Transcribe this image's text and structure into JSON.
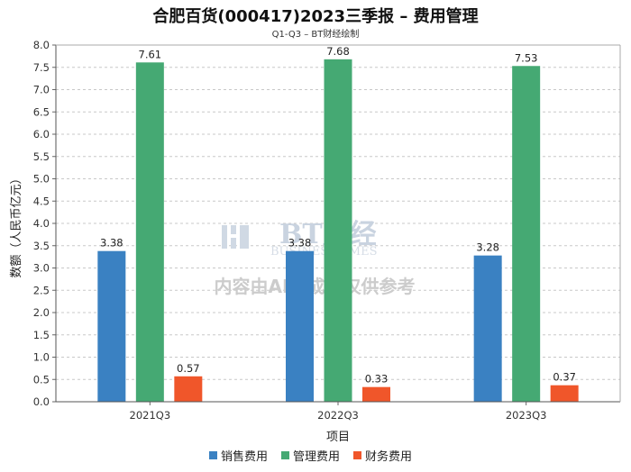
{
  "title": "合肥百货(000417)2023三季报 – 费用管理",
  "subtitle": "Q1-Q3 – BT财经绘制",
  "watermark": {
    "brand": "BT财经",
    "brand_en": "BUSINESSTIMES",
    "disclaimer": "内容由AI生成，仅供参考"
  },
  "chart_data": {
    "type": "bar",
    "categories": [
      "2021Q3",
      "2022Q3",
      "2023Q3"
    ],
    "series": [
      {
        "name": "销售费用",
        "values": [
          3.38,
          3.38,
          3.28
        ],
        "color": "#3a81c2"
      },
      {
        "name": "管理费用",
        "values": [
          7.61,
          7.68,
          7.53
        ],
        "color": "#45a973"
      },
      {
        "name": "财务费用",
        "values": [
          0.57,
          0.33,
          0.37
        ],
        "color": "#f0562a"
      }
    ],
    "xlabel": "项目",
    "ylabel": "数额（人民币亿元）",
    "ylim": [
      0,
      8.0
    ],
    "yticks": [
      "0.0",
      "0.5",
      "1.0",
      "1.5",
      "2.0",
      "2.5",
      "3.0",
      "3.5",
      "4.0",
      "4.5",
      "5.0",
      "5.5",
      "6.0",
      "6.5",
      "7.0",
      "7.5",
      "8.0"
    ],
    "grid": true,
    "legend_position": "bottom"
  }
}
